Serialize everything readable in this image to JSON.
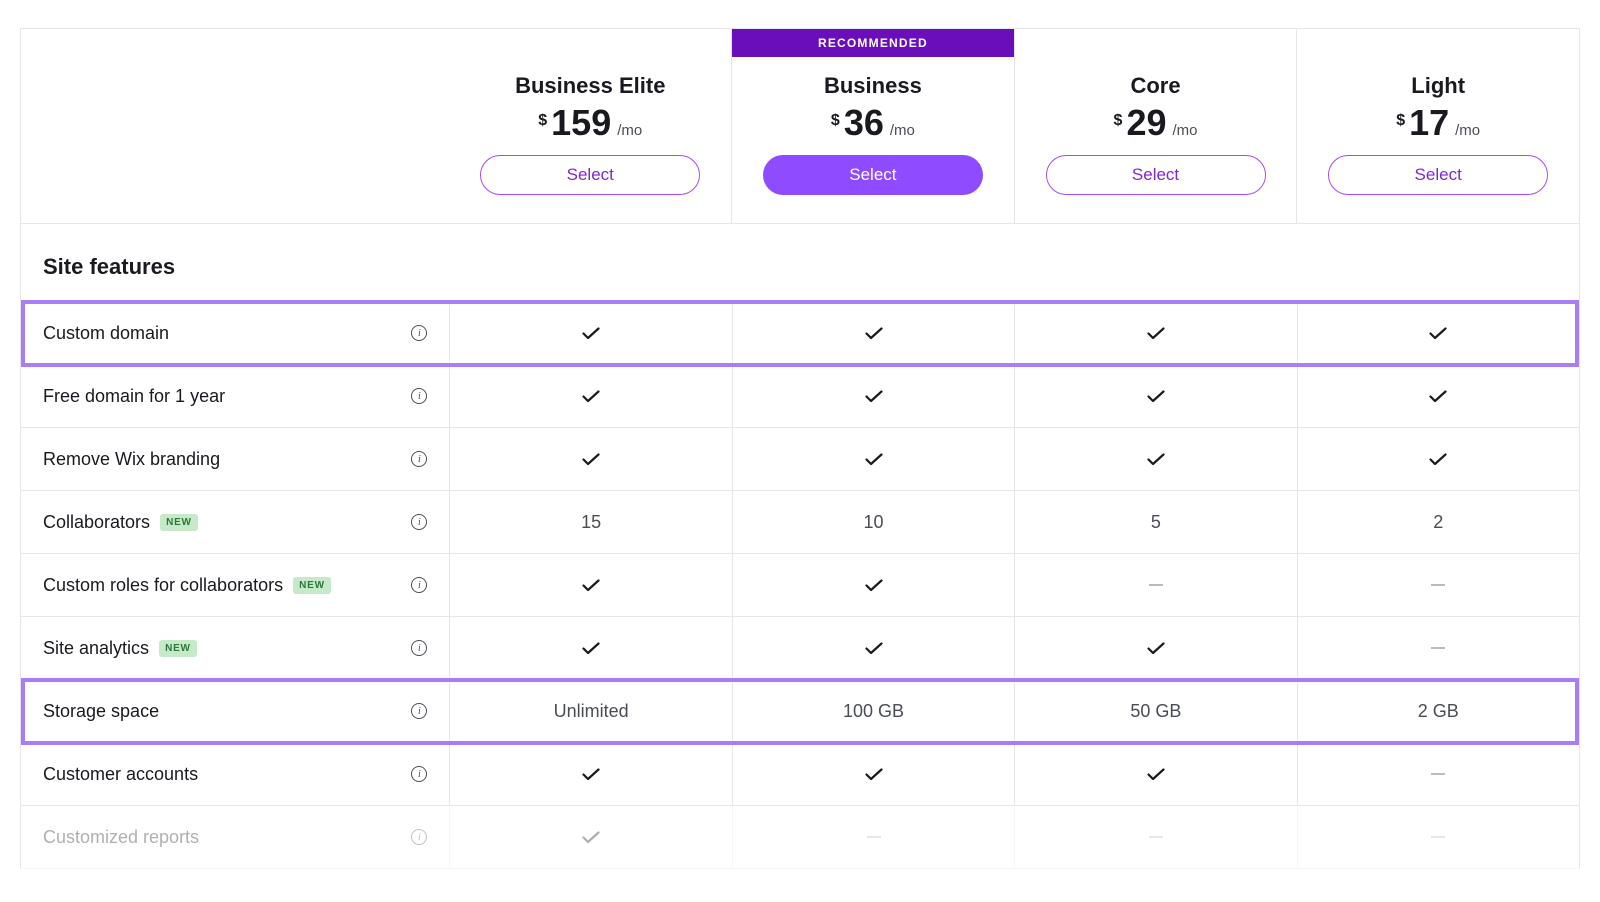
{
  "colors": {
    "accent": "#8f4bff",
    "badge_bg": "#6a0dbb",
    "select_outline": "#a34aff",
    "select_text": "#8126d9",
    "highlight_border": "#a97ef5",
    "new_badge_bg": "#c6e9c9",
    "new_badge_text": "#2b7a3a",
    "check_color": "#191a1f",
    "text_muted": "#4b4d55"
  },
  "plans": [
    {
      "id": "business-elite",
      "name": "Business Elite",
      "currency": "$",
      "price": "159",
      "period": "/mo",
      "recommended": false,
      "select_label": "Select"
    },
    {
      "id": "business",
      "name": "Business",
      "currency": "$",
      "price": "36",
      "period": "/mo",
      "recommended": true,
      "select_label": "Select",
      "badge_label": "RECOMMENDED"
    },
    {
      "id": "core",
      "name": "Core",
      "currency": "$",
      "price": "29",
      "period": "/mo",
      "recommended": false,
      "select_label": "Select"
    },
    {
      "id": "light",
      "name": "Light",
      "currency": "$",
      "price": "17",
      "period": "/mo",
      "recommended": false,
      "select_label": "Select"
    }
  ],
  "section_title": "Site features",
  "new_tag_label": "NEW",
  "features": [
    {
      "label": "Custom domain",
      "new": false,
      "highlight": true,
      "values": [
        "check",
        "check",
        "check",
        "check"
      ]
    },
    {
      "label": "Free domain for 1 year",
      "new": false,
      "highlight": false,
      "values": [
        "check",
        "check",
        "check",
        "check"
      ]
    },
    {
      "label": "Remove Wix branding",
      "new": false,
      "highlight": false,
      "values": [
        "check",
        "check",
        "check",
        "check"
      ]
    },
    {
      "label": "Collaborators",
      "new": true,
      "highlight": false,
      "values": [
        "15",
        "10",
        "5",
        "2"
      ]
    },
    {
      "label": "Custom roles for collaborators",
      "new": true,
      "highlight": false,
      "values": [
        "check",
        "check",
        "dash",
        "dash"
      ]
    },
    {
      "label": "Site analytics",
      "new": true,
      "highlight": false,
      "values": [
        "check",
        "check",
        "check",
        "dash"
      ]
    },
    {
      "label": "Storage space",
      "new": false,
      "highlight": true,
      "values": [
        "Unlimited",
        "100 GB",
        "50 GB",
        "2 GB"
      ]
    },
    {
      "label": "Customer accounts",
      "new": false,
      "highlight": false,
      "values": [
        "check",
        "check",
        "check",
        "dash"
      ]
    },
    {
      "label": "Customized reports",
      "new": false,
      "highlight": false,
      "faded": true,
      "values": [
        "check",
        "dash",
        "dash",
        "dash"
      ]
    }
  ]
}
